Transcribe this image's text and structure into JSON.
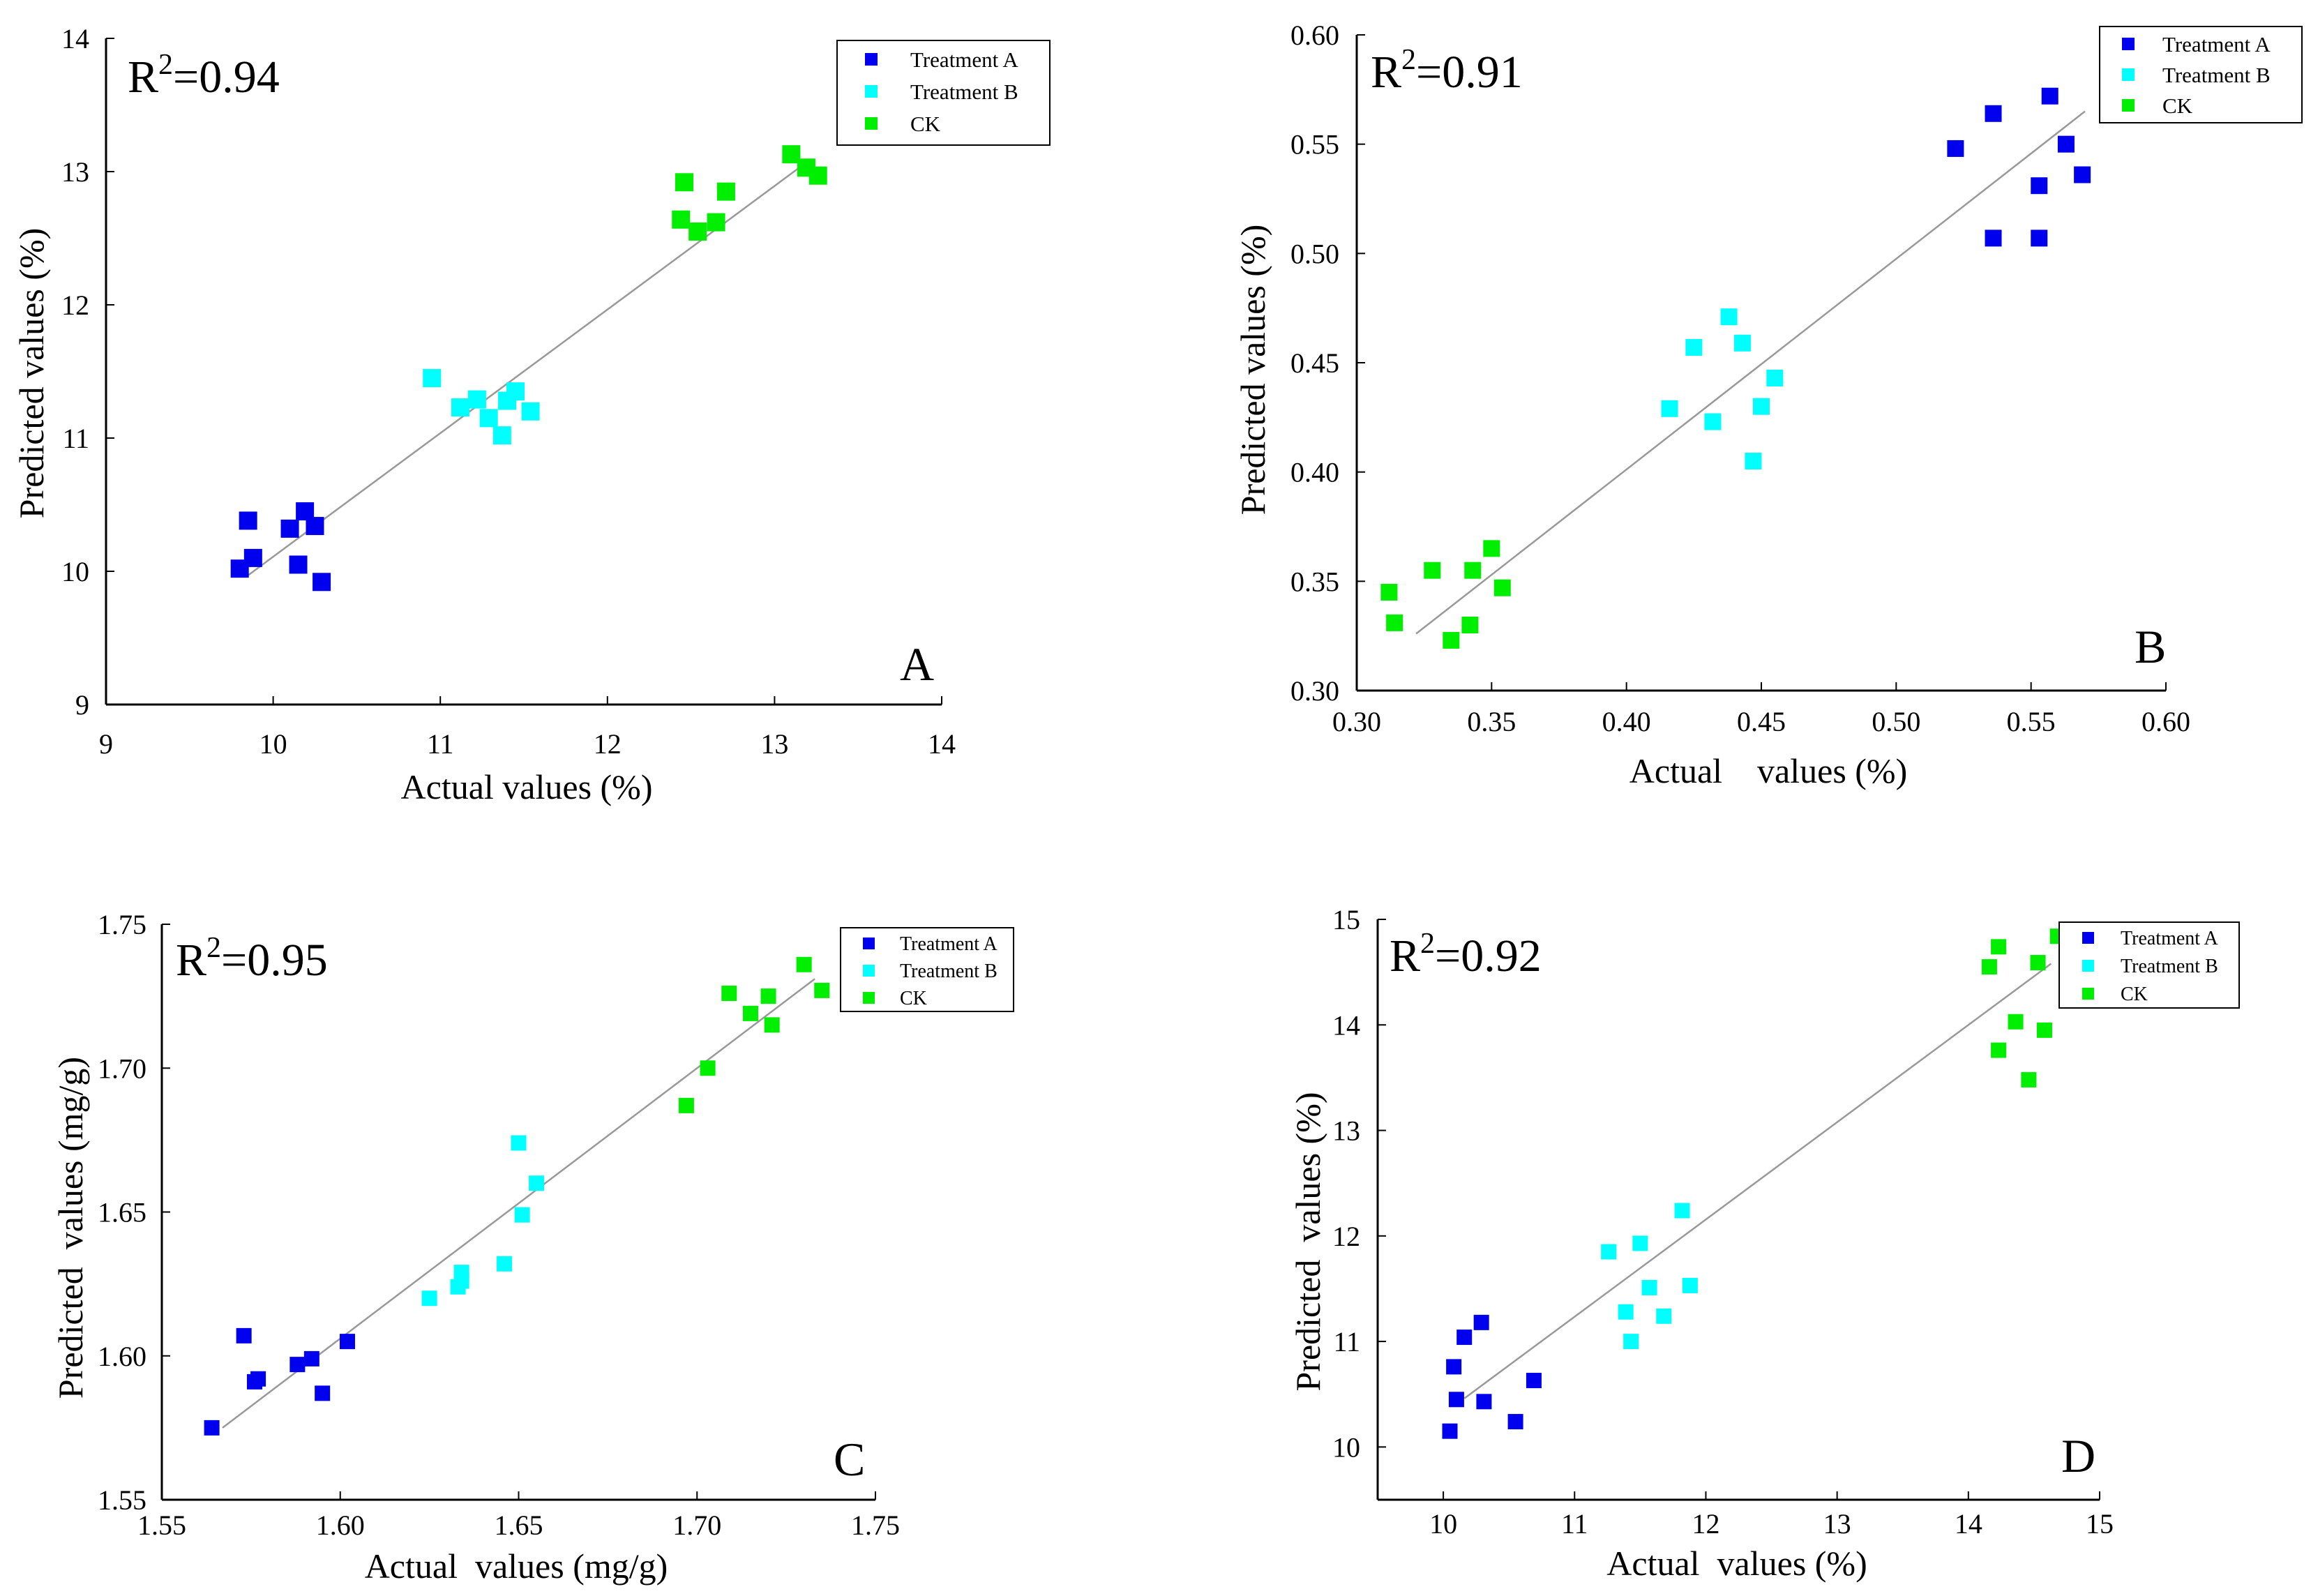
{
  "colors": {
    "treatment_a": "#0000ee",
    "treatment_b": "#00ffff",
    "ck": "#00ee00",
    "fit_line": "#999999",
    "axis": "#000000"
  },
  "chart_data": [
    {
      "panel": "A",
      "type": "scatter",
      "r2_prefix": "R",
      "r2_sup": "2",
      "r2_value": "=0.94",
      "xlabel": "Actual values (%)",
      "ylabel": "Predicted  values (%)",
      "xlim": [
        9,
        14
      ],
      "ylim": [
        9,
        14
      ],
      "xticks": [
        "9",
        "10",
        "11",
        "12",
        "13",
        "14"
      ],
      "yticks": [
        "9",
        "10",
        "11",
        "12",
        "13",
        "14"
      ],
      "legend_position": "top-right",
      "series": [
        {
          "name": "Treatment A",
          "color_key": "treatment_a",
          "points": [
            [
              9.8,
              10.02
            ],
            [
              9.85,
              10.38
            ],
            [
              9.88,
              10.1
            ],
            [
              10.1,
              10.32
            ],
            [
              10.15,
              10.05
            ],
            [
              10.19,
              10.45
            ],
            [
              10.25,
              10.34
            ],
            [
              10.29,
              9.92
            ]
          ]
        },
        {
          "name": "Treatment B",
          "color_key": "treatment_b",
          "points": [
            [
              10.95,
              11.45
            ],
            [
              11.12,
              11.23
            ],
            [
              11.22,
              11.29
            ],
            [
              11.29,
              11.15
            ],
            [
              11.37,
              11.02
            ],
            [
              11.4,
              11.28
            ],
            [
              11.45,
              11.35
            ],
            [
              11.54,
              11.2
            ]
          ]
        },
        {
          "name": "CK",
          "color_key": "ck",
          "points": [
            [
              12.44,
              12.64
            ],
            [
              12.46,
              12.92
            ],
            [
              12.54,
              12.55
            ],
            [
              12.65,
              12.62
            ],
            [
              12.71,
              12.85
            ],
            [
              13.1,
              13.13
            ],
            [
              13.19,
              13.03
            ],
            [
              13.26,
              12.97
            ]
          ]
        }
      ],
      "fit_line": [
        [
          9.85,
          9.97
        ],
        [
          13.17,
          13.05
        ]
      ]
    },
    {
      "panel": "B",
      "type": "scatter",
      "r2_prefix": "R",
      "r2_sup": "2",
      "r2_value": "=0.91",
      "xlabel": "Actual    values (%)",
      "ylabel": "Predicted values (%)",
      "xlim": [
        0.3,
        0.6
      ],
      "ylim": [
        0.3,
        0.6
      ],
      "xticks": [
        "0.30",
        "0.35",
        "0.40",
        "0.45",
        "0.50",
        "0.55",
        "0.60"
      ],
      "yticks": [
        "0.30",
        "0.35",
        "0.40",
        "0.45",
        "0.50",
        "0.55",
        "0.60"
      ],
      "legend_position": "top-right",
      "series": [
        {
          "name": "Treatment A",
          "color_key": "treatment_a",
          "points": [
            [
              0.522,
              0.548
            ],
            [
              0.536,
              0.564
            ],
            [
              0.536,
              0.507
            ],
            [
              0.553,
              0.531
            ],
            [
              0.553,
              0.507
            ],
            [
              0.557,
              0.572
            ],
            [
              0.563,
              0.55
            ],
            [
              0.569,
              0.536
            ]
          ]
        },
        {
          "name": "Treatment B",
          "color_key": "treatment_b",
          "points": [
            [
              0.416,
              0.429
            ],
            [
              0.425,
              0.457
            ],
            [
              0.432,
              0.423
            ],
            [
              0.438,
              0.471
            ],
            [
              0.443,
              0.459
            ],
            [
              0.447,
              0.405
            ],
            [
              0.45,
              0.43
            ],
            [
              0.455,
              0.443
            ]
          ]
        },
        {
          "name": "CK",
          "color_key": "ck",
          "points": [
            [
              0.312,
              0.345
            ],
            [
              0.314,
              0.331
            ],
            [
              0.328,
              0.355
            ],
            [
              0.335,
              0.323
            ],
            [
              0.342,
              0.33
            ],
            [
              0.343,
              0.355
            ],
            [
              0.35,
              0.365
            ],
            [
              0.354,
              0.347
            ]
          ]
        }
      ],
      "fit_line": [
        [
          0.322,
          0.326
        ],
        [
          0.57,
          0.565
        ]
      ]
    },
    {
      "panel": "C",
      "type": "scatter",
      "r2_prefix": "R",
      "r2_sup": "2",
      "r2_value": "=0.95",
      "xlabel": "Actual  values (mg/g)",
      "ylabel": "Predicted  values (mg/g)",
      "xlim": [
        1.55,
        1.75
      ],
      "ylim": [
        1.55,
        1.75
      ],
      "xticks": [
        "1.55",
        "1.60",
        "1.65",
        "1.70",
        "1.75"
      ],
      "yticks": [
        "1.55",
        "1.60",
        "1.65",
        "1.70",
        "1.75"
      ],
      "legend_position": "top-right",
      "series": [
        {
          "name": "Treatment A",
          "color_key": "treatment_a",
          "points": [
            [
              1.564,
              1.575
            ],
            [
              1.573,
              1.607
            ],
            [
              1.576,
              1.591
            ],
            [
              1.577,
              1.592
            ],
            [
              1.588,
              1.597
            ],
            [
              1.592,
              1.599
            ],
            [
              1.595,
              1.587
            ],
            [
              1.602,
              1.605
            ]
          ]
        },
        {
          "name": "Treatment B",
          "color_key": "treatment_b",
          "points": [
            [
              1.625,
              1.62
            ],
            [
              1.633,
              1.624
            ],
            [
              1.634,
              1.629
            ],
            [
              1.646,
              1.632
            ],
            [
              1.65,
              1.674
            ],
            [
              1.651,
              1.649
            ],
            [
              1.655,
              1.66
            ],
            [
              1.634,
              1.626
            ]
          ]
        },
        {
          "name": "CK",
          "color_key": "ck",
          "points": [
            [
              1.697,
              1.687
            ],
            [
              1.703,
              1.7
            ],
            [
              1.709,
              1.726
            ],
            [
              1.715,
              1.719
            ],
            [
              1.72,
              1.725
            ],
            [
              1.721,
              1.715
            ],
            [
              1.73,
              1.736
            ],
            [
              1.735,
              1.727
            ]
          ]
        }
      ],
      "fit_line": [
        [
          1.567,
          1.575
        ],
        [
          1.733,
          1.731
        ]
      ]
    },
    {
      "panel": "D",
      "type": "scatter",
      "r2_prefix": "R",
      "r2_sup": "2",
      "r2_value": "=0.92",
      "xlabel": "Actual  values (%)",
      "ylabel": "Predicted  values (%)",
      "xlim": [
        9.5,
        15
      ],
      "ylim": [
        9.5,
        15
      ],
      "xticks": [
        "10",
        "11",
        "12",
        "13",
        "14",
        "15"
      ],
      "xtick_values": [
        10,
        11,
        12,
        13,
        14,
        15
      ],
      "yticks": [
        "10",
        "11",
        "12",
        "13",
        "14",
        "15"
      ],
      "ytick_values": [
        10,
        11,
        12,
        13,
        14,
        15
      ],
      "legend_position": "top-right",
      "series": [
        {
          "name": "Treatment A",
          "color_key": "treatment_a",
          "points": [
            [
              10.05,
              10.15
            ],
            [
              10.08,
              10.76
            ],
            [
              10.1,
              10.45
            ],
            [
              10.16,
              11.04
            ],
            [
              10.29,
              11.18
            ],
            [
              10.31,
              10.43
            ],
            [
              10.55,
              10.24
            ],
            [
              10.69,
              10.63
            ]
          ]
        },
        {
          "name": "Treatment B",
          "color_key": "treatment_b",
          "points": [
            [
              11.26,
              11.85
            ],
            [
              11.39,
              11.28
            ],
            [
              11.43,
              11.0
            ],
            [
              11.5,
              11.93
            ],
            [
              11.57,
              11.51
            ],
            [
              11.68,
              11.24
            ],
            [
              11.82,
              12.24
            ],
            [
              11.88,
              11.53
            ]
          ]
        },
        {
          "name": "CK",
          "color_key": "ck",
          "points": [
            [
              14.16,
              14.55
            ],
            [
              14.23,
              14.74
            ],
            [
              14.23,
              13.76
            ],
            [
              14.36,
              14.03
            ],
            [
              14.46,
              13.48
            ],
            [
              14.53,
              14.59
            ],
            [
              14.58,
              13.95
            ],
            [
              14.68,
              14.84
            ]
          ]
        }
      ],
      "fit_line": [
        [
          10.16,
          10.46
        ],
        [
          14.63,
          14.58
        ]
      ]
    }
  ]
}
